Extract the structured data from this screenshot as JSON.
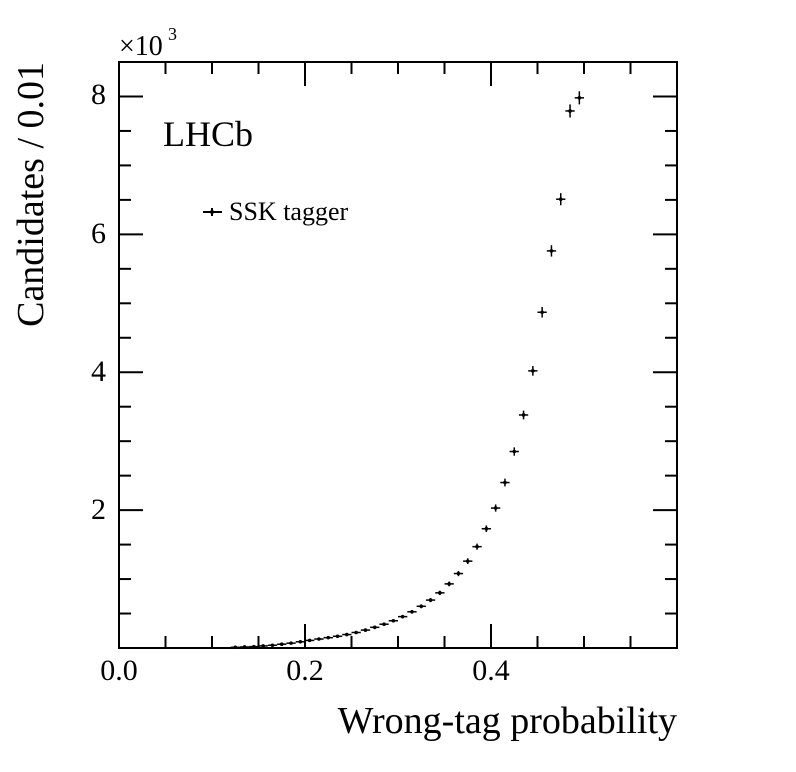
{
  "chart_data": {
    "type": "scatter",
    "title": "",
    "xlabel": "Wrong-tag probability",
    "ylabel": "Candidates / 0.01",
    "xlim": [
      0.0,
      0.6
    ],
    "ylim": [
      0,
      8500
    ],
    "x_ticks": [
      "0.0",
      "0.2",
      "0.4"
    ],
    "y_ticks": [
      "2",
      "4",
      "6",
      "8"
    ],
    "y_multiplier": "×10",
    "y_multiplier_exp": "3",
    "experiment_label": "LHCb",
    "legend_position": "top-left",
    "grid": false,
    "series": [
      {
        "name": "SSK tagger",
        "x": [
          0.125,
          0.135,
          0.145,
          0.155,
          0.165,
          0.175,
          0.185,
          0.195,
          0.205,
          0.215,
          0.225,
          0.235,
          0.245,
          0.255,
          0.265,
          0.275,
          0.285,
          0.295,
          0.305,
          0.315,
          0.325,
          0.335,
          0.345,
          0.355,
          0.365,
          0.375,
          0.385,
          0.395,
          0.405,
          0.415,
          0.425,
          0.435,
          0.445,
          0.455,
          0.465,
          0.475,
          0.485,
          0.495
        ],
        "y": [
          10,
          15,
          20,
          30,
          40,
          55,
          70,
          90,
          110,
          130,
          150,
          170,
          195,
          225,
          260,
          300,
          345,
          395,
          455,
          525,
          605,
          695,
          800,
          930,
          1080,
          1260,
          1470,
          1730,
          2030,
          2400,
          2850,
          3380,
          4020,
          4870,
          5760,
          6510,
          7790,
          7980
        ],
        "y_err": [
          5,
          6,
          7,
          8,
          9,
          10,
          11,
          12,
          13,
          14,
          15,
          16,
          17,
          18,
          19,
          20,
          21,
          22,
          24,
          26,
          28,
          30,
          32,
          35,
          38,
          41,
          44,
          48,
          52,
          56,
          60,
          64,
          70,
          76,
          82,
          88,
          95,
          95
        ]
      }
    ]
  }
}
